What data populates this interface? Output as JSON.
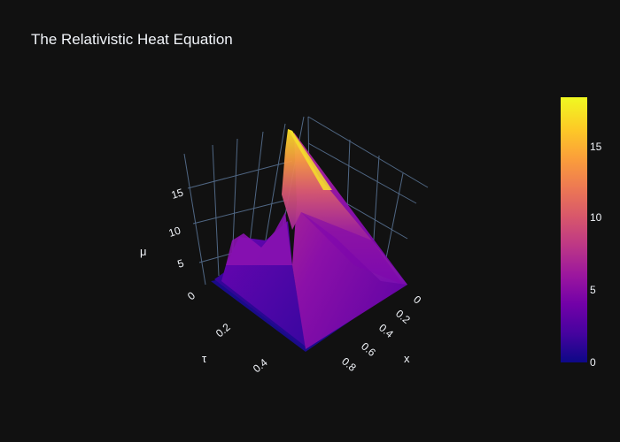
{
  "chart_data": {
    "type": "surface",
    "title": "The Relativistic Heat Equation",
    "axes": {
      "x": {
        "label": "x",
        "ticks": [
          0,
          0.2,
          0.4,
          0.6,
          0.8
        ],
        "range": [
          0,
          1
        ]
      },
      "y": {
        "label": "τ",
        "ticks": [
          0,
          0.2,
          0.4
        ],
        "range": [
          0,
          0.5
        ]
      },
      "z": {
        "label": "μ",
        "ticks": [
          5,
          10,
          15
        ],
        "range": [
          0,
          18.3
        ]
      }
    },
    "colorscale": "plasma",
    "colorbar": {
      "ticks": [
        0,
        5,
        10,
        15
      ],
      "range": [
        0,
        18.3
      ]
    },
    "colors": {
      "background": "#111111",
      "grid": "#506784",
      "text": "#f2f5fa",
      "plasma": [
        "#0d0887",
        "#46039f",
        "#7201a8",
        "#9c179e",
        "#bd3786",
        "#d8576b",
        "#ed7953",
        "#fb9f3a",
        "#fdca26",
        "#f0f921"
      ]
    },
    "surface_samples": [
      {
        "x": 0,
        "tau": 0,
        "mu": 1.0
      },
      {
        "x": 0,
        "tau": 0.5,
        "mu": 18.3
      },
      {
        "x": 0.5,
        "tau": 0.2,
        "mu": 6.5
      },
      {
        "x": 1,
        "tau": 0,
        "mu": 0.5
      },
      {
        "x": 1,
        "tau": 0.5,
        "mu": 0.3
      }
    ]
  }
}
